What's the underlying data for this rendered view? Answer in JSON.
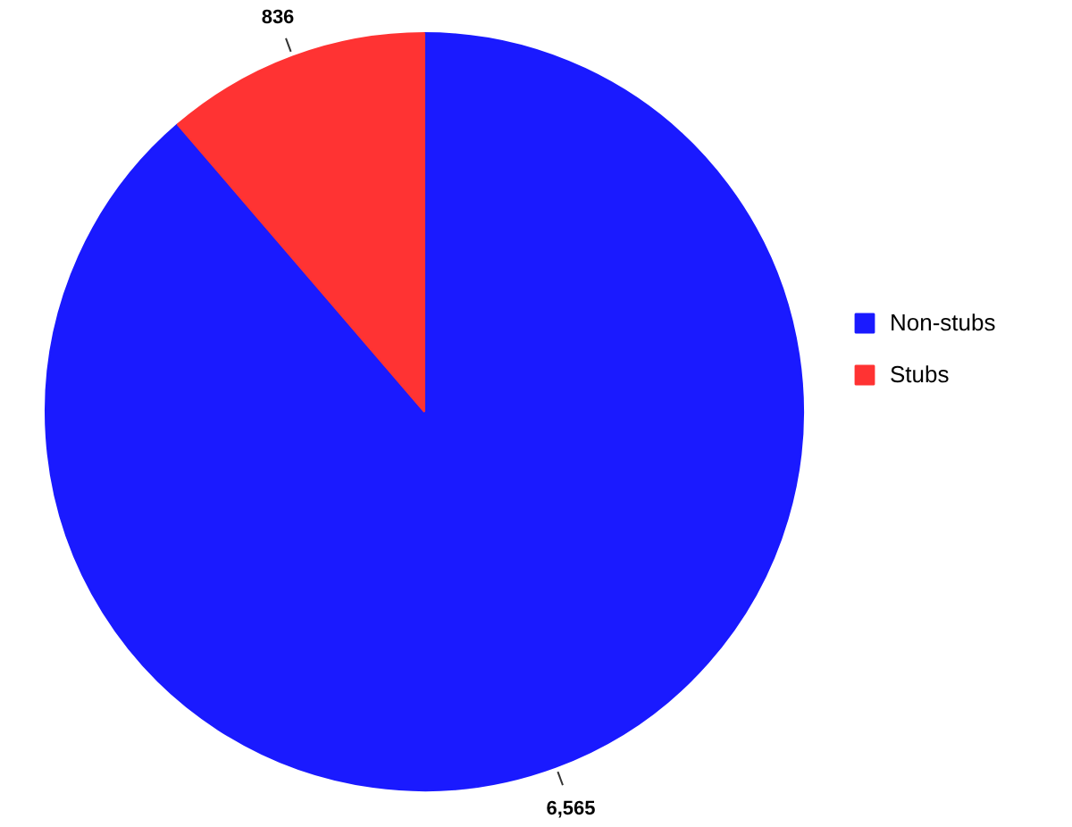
{
  "chart_data": {
    "type": "pie",
    "categories": [
      "Non-stubs",
      "Stubs"
    ],
    "values": [
      6565,
      836
    ],
    "colors": [
      "#1a1aff",
      "#ff3333"
    ],
    "value_labels": [
      "6,565",
      "836"
    ],
    "legend": "right"
  }
}
